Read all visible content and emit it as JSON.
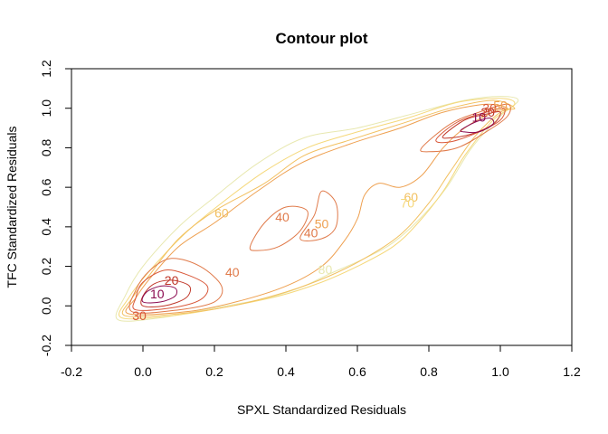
{
  "chart_data": {
    "type": "contour",
    "title": "Contour plot",
    "xlabel": "SPXL Standardized Residuals",
    "ylabel": "TFC Standardized Residuals",
    "xlim": [
      -0.2,
      1.2
    ],
    "ylim": [
      -0.2,
      1.2
    ],
    "x_ticks": [
      "-0.2",
      "0.0",
      "0.2",
      "0.4",
      "0.6",
      "0.8",
      "1.0",
      "1.2"
    ],
    "y_ticks": [
      "-0.2",
      "0.0",
      "0.2",
      "0.4",
      "0.6",
      "0.8",
      "1.0",
      "1.2"
    ],
    "grid": false,
    "level_colors": {
      "10": "#8b0a50",
      "20": "#c0392b",
      "30": "#d9583a",
      "40": "#e07a4a",
      "50": "#eea050",
      "60": "#f2c060",
      "70": "#f5d87a",
      "80": "#e8e8b0"
    },
    "level_labels": [
      {
        "text": "10",
        "level": 10,
        "x": 0.04,
        "y": 0.06
      },
      {
        "text": "20",
        "level": 20,
        "x": 0.08,
        "y": 0.13
      },
      {
        "text": "30",
        "level": 30,
        "x": -0.01,
        "y": -0.05
      },
      {
        "text": "10",
        "level": 10,
        "x": 0.94,
        "y": 0.955
      },
      {
        "text": "20",
        "level": 20,
        "x": 0.965,
        "y": 0.98
      },
      {
        "text": "30",
        "level": 30,
        "x": 0.97,
        "y": 1.0
      },
      {
        "text": "50",
        "level": 50,
        "x": 1.0,
        "y": 1.015
      },
      {
        "text": "60",
        "level": 60,
        "x": 0.22,
        "y": 0.47
      },
      {
        "text": "40",
        "level": 40,
        "x": 0.39,
        "y": 0.45
      },
      {
        "text": "50",
        "level": 50,
        "x": 0.5,
        "y": 0.415
      },
      {
        "text": "40",
        "level": 40,
        "x": 0.47,
        "y": 0.37
      },
      {
        "text": "40",
        "level": 40,
        "x": 0.25,
        "y": 0.17
      },
      {
        "text": "80",
        "level": 80,
        "x": 0.51,
        "y": 0.185
      },
      {
        "text": "60",
        "level": 60,
        "x": 0.75,
        "y": 0.55
      },
      {
        "text": "70",
        "level": 70,
        "x": 0.74,
        "y": 0.52
      }
    ],
    "contours": [
      {
        "level": 80,
        "points": [
          [
            -0.07,
            -0.07
          ],
          [
            0.05,
            -0.06
          ],
          [
            0.2,
            -0.01
          ],
          [
            0.35,
            0.04
          ],
          [
            0.45,
            0.1
          ],
          [
            0.52,
            0.16
          ],
          [
            0.62,
            0.24
          ],
          [
            0.7,
            0.32
          ],
          [
            0.78,
            0.45
          ],
          [
            0.85,
            0.6
          ],
          [
            0.92,
            0.8
          ],
          [
            1.0,
            0.96
          ],
          [
            1.05,
            1.04
          ],
          [
            1.0,
            1.06
          ],
          [
            0.9,
            1.04
          ],
          [
            0.75,
            0.97
          ],
          [
            0.6,
            0.9
          ],
          [
            0.45,
            0.85
          ],
          [
            0.32,
            0.72
          ],
          [
            0.2,
            0.55
          ],
          [
            0.1,
            0.4
          ],
          [
            0.0,
            0.2
          ],
          [
            -0.05,
            0.05
          ]
        ]
      },
      {
        "level": 70,
        "points": [
          [
            -0.06,
            -0.06
          ],
          [
            0.08,
            -0.05
          ],
          [
            0.22,
            -0.01
          ],
          [
            0.38,
            0.05
          ],
          [
            0.5,
            0.12
          ],
          [
            0.6,
            0.2
          ],
          [
            0.7,
            0.3
          ],
          [
            0.77,
            0.42
          ],
          [
            0.84,
            0.58
          ],
          [
            0.9,
            0.76
          ],
          [
            0.98,
            0.94
          ],
          [
            1.04,
            1.02
          ],
          [
            1.0,
            1.05
          ],
          [
            0.88,
            1.03
          ],
          [
            0.74,
            0.95
          ],
          [
            0.6,
            0.88
          ],
          [
            0.46,
            0.8
          ],
          [
            0.34,
            0.68
          ],
          [
            0.22,
            0.52
          ],
          [
            0.12,
            0.37
          ],
          [
            0.02,
            0.18
          ],
          [
            -0.04,
            0.04
          ]
        ]
      },
      {
        "level": 60,
        "points": [
          [
            -0.05,
            -0.05
          ],
          [
            0.1,
            -0.04
          ],
          [
            0.25,
            0.0
          ],
          [
            0.4,
            0.07
          ],
          [
            0.52,
            0.15
          ],
          [
            0.62,
            0.24
          ],
          [
            0.72,
            0.36
          ],
          [
            0.8,
            0.52
          ],
          [
            0.86,
            0.68
          ],
          [
            0.93,
            0.86
          ],
          [
            1.0,
            0.98
          ],
          [
            1.04,
            1.0
          ],
          [
            0.98,
            1.04
          ],
          [
            0.86,
            1.0
          ],
          [
            0.72,
            0.92
          ],
          [
            0.58,
            0.84
          ],
          [
            0.45,
            0.76
          ],
          [
            0.34,
            0.62
          ],
          [
            0.2,
            0.48
          ],
          [
            0.1,
            0.34
          ],
          [
            0.02,
            0.16
          ],
          [
            -0.03,
            0.04
          ]
        ]
      },
      {
        "level": 50,
        "points": [
          [
            -0.04,
            -0.04
          ],
          [
            0.12,
            -0.03
          ],
          [
            0.26,
            0.02
          ],
          [
            0.4,
            0.1
          ],
          [
            0.5,
            0.2
          ],
          [
            0.56,
            0.32
          ],
          [
            0.6,
            0.44
          ],
          [
            0.62,
            0.56
          ],
          [
            0.66,
            0.62
          ],
          [
            0.72,
            0.6
          ],
          [
            0.78,
            0.66
          ],
          [
            0.84,
            0.8
          ],
          [
            0.9,
            0.9
          ],
          [
            0.98,
            0.98
          ],
          [
            1.02,
            1.0
          ],
          [
            0.96,
            1.02
          ],
          [
            0.84,
            0.98
          ],
          [
            0.72,
            0.9
          ],
          [
            0.58,
            0.82
          ],
          [
            0.44,
            0.72
          ],
          [
            0.32,
            0.58
          ],
          [
            0.2,
            0.42
          ],
          [
            0.1,
            0.3
          ],
          [
            0.02,
            0.14
          ],
          [
            -0.02,
            0.04
          ]
        ]
      },
      {
        "level": 40,
        "points": [
          [
            0.3,
            0.3
          ],
          [
            0.34,
            0.42
          ],
          [
            0.4,
            0.5
          ],
          [
            0.46,
            0.48
          ],
          [
            0.44,
            0.38
          ],
          [
            0.38,
            0.3
          ],
          [
            0.32,
            0.28
          ]
        ]
      },
      {
        "level": 40,
        "points": [
          [
            0.44,
            0.34
          ],
          [
            0.48,
            0.46
          ],
          [
            0.5,
            0.58
          ],
          [
            0.54,
            0.52
          ],
          [
            0.54,
            0.4
          ],
          [
            0.5,
            0.34
          ]
        ]
      },
      {
        "level": 40,
        "points": [
          [
            0.78,
            0.8
          ],
          [
            0.86,
            0.92
          ],
          [
            0.94,
            0.98
          ],
          [
            1.02,
            1.02
          ],
          [
            1.02,
            0.96
          ],
          [
            0.96,
            0.88
          ],
          [
            0.88,
            0.8
          ],
          [
            0.8,
            0.78
          ]
        ]
      },
      {
        "level": 40,
        "points": [
          [
            -0.03,
            -0.03
          ],
          [
            0.1,
            -0.02
          ],
          [
            0.2,
            0.02
          ],
          [
            0.22,
            0.1
          ],
          [
            0.16,
            0.2
          ],
          [
            0.08,
            0.24
          ],
          [
            0.02,
            0.18
          ],
          [
            -0.02,
            0.08
          ]
        ]
      },
      {
        "level": 30,
        "points": [
          [
            -0.02,
            -0.02
          ],
          [
            0.08,
            -0.01
          ],
          [
            0.16,
            0.03
          ],
          [
            0.18,
            0.1
          ],
          [
            0.12,
            0.16
          ],
          [
            0.06,
            0.18
          ],
          [
            0.0,
            0.12
          ],
          [
            -0.02,
            0.04
          ]
        ]
      },
      {
        "level": 30,
        "points": [
          [
            0.82,
            0.84
          ],
          [
            0.88,
            0.93
          ],
          [
            0.96,
            0.98
          ],
          [
            1.01,
            1.0
          ],
          [
            1.0,
            0.94
          ],
          [
            0.94,
            0.88
          ],
          [
            0.86,
            0.83
          ]
        ]
      },
      {
        "level": 20,
        "points": [
          [
            0.0,
            0.0
          ],
          [
            0.06,
            0.0
          ],
          [
            0.12,
            0.04
          ],
          [
            0.13,
            0.1
          ],
          [
            0.08,
            0.13
          ],
          [
            0.03,
            0.11
          ],
          [
            0.0,
            0.05
          ]
        ]
      },
      {
        "level": 20,
        "points": [
          [
            0.84,
            0.86
          ],
          [
            0.9,
            0.94
          ],
          [
            0.96,
            0.97
          ],
          [
            1.0,
            0.98
          ],
          [
            0.98,
            0.92
          ],
          [
            0.92,
            0.87
          ],
          [
            0.86,
            0.85
          ]
        ]
      },
      {
        "level": 10,
        "points": [
          [
            0.0,
            0.02
          ],
          [
            0.05,
            0.02
          ],
          [
            0.09,
            0.05
          ],
          [
            0.09,
            0.09
          ],
          [
            0.05,
            0.1
          ],
          [
            0.01,
            0.07
          ]
        ]
      },
      {
        "level": 10,
        "points": [
          [
            0.89,
            0.89
          ],
          [
            0.93,
            0.93
          ],
          [
            0.97,
            0.95
          ],
          [
            0.98,
            0.92
          ],
          [
            0.94,
            0.88
          ],
          [
            0.9,
            0.88
          ]
        ]
      }
    ]
  }
}
